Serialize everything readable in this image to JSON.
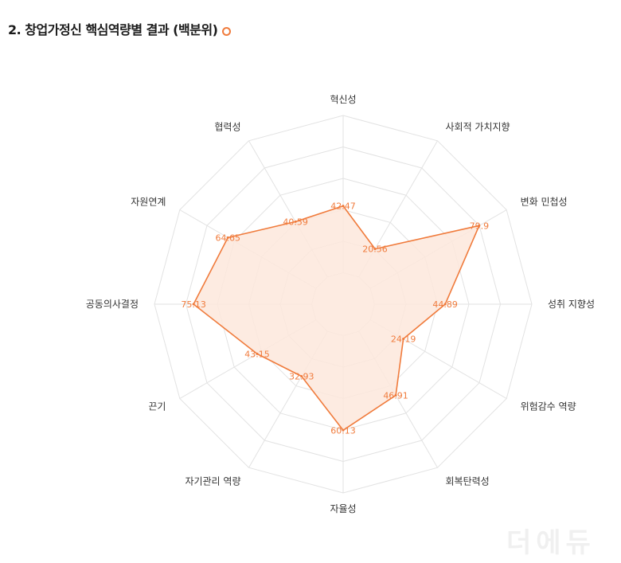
{
  "title": "2. 창업가정신 핵심역량별 결과 (백분위)",
  "chart_data": {
    "type": "radar",
    "title": "2. 창업가정신 핵심역량별 결과 (백분위)",
    "categories": [
      "혁신성",
      "사회적 가치지향",
      "변화 민첩성",
      "성취 지향성",
      "위험감수 역량",
      "회복탄력성",
      "자율성",
      "자기관리 역량",
      "끈기",
      "공동의사결정",
      "자원연계",
      "협력성"
    ],
    "series": [
      {
        "values": [
          42.47,
          20.56,
          79.9,
          44.89,
          24.19,
          46.91,
          60.13,
          32.93,
          43.15,
          75.13,
          64.65,
          40.59
        ]
      }
    ],
    "value_labels": [
      "42.47",
      "20.56",
      "79.9",
      "44.89",
      "24.19",
      "46.91",
      "60.13",
      "32.93",
      "43.15",
      "75.13",
      "64.65",
      "40.59"
    ],
    "rlim": [
      -20,
      100
    ],
    "rings": 6,
    "colors": {
      "line": "#f07b3c",
      "fill": "#fde8dc",
      "grid": "#e2e2e2"
    }
  },
  "watermark": {
    "text": "더에듀"
  }
}
